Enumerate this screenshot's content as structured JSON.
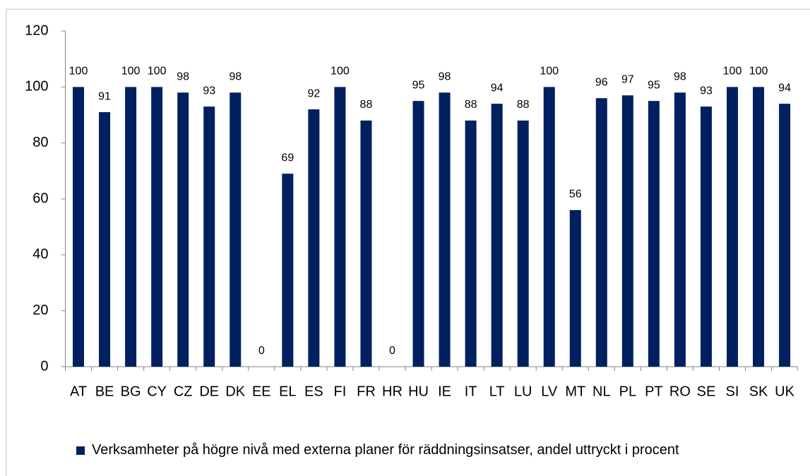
{
  "chart_data": {
    "type": "bar",
    "categories": [
      "AT",
      "BE",
      "BG",
      "CY",
      "CZ",
      "DE",
      "DK",
      "EE",
      "EL",
      "ES",
      "FI",
      "FR",
      "HR",
      "HU",
      "IE",
      "IT",
      "LT",
      "LU",
      "LV",
      "MT",
      "NL",
      "PL",
      "PT",
      "RO",
      "SE",
      "SI",
      "SK",
      "UK"
    ],
    "series": [
      {
        "name": "Verksamheter på högre nivå med externa planer för räddningsinsatser, andel uttryckt i procent",
        "color": "#002060",
        "values": [
          100,
          91,
          100,
          100,
          98,
          93,
          98,
          0,
          69,
          92,
          100,
          88,
          0,
          95,
          98,
          88,
          94,
          88,
          100,
          56,
          96,
          97,
          95,
          98,
          93,
          100,
          100,
          94
        ]
      }
    ],
    "ylim": [
      0,
      120
    ],
    "yticks": [
      0,
      20,
      40,
      60,
      80,
      100,
      120
    ],
    "grid": false,
    "legend": "bottom"
  }
}
